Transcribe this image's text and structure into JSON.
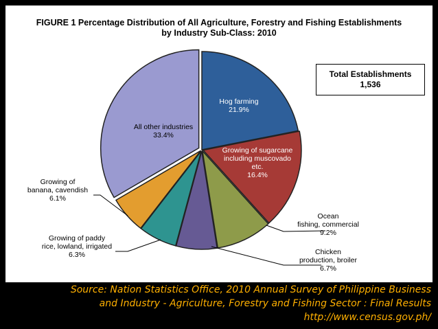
{
  "title": {
    "line1": "FIGURE 1  Percentage Distribution of All Agriculture, Forestry and Fishing Establishments",
    "line2": "by Industry Sub-Class: 2010"
  },
  "total_box": {
    "label": "Total Establishments",
    "value": "1,536"
  },
  "source": {
    "line1": "Source: Nation Statistics Office, 2010 Annual Survey of Philippine Business",
    "line2": "and Industry - Agriculture, Forestry and Fishing Sector : Final Results",
    "line3": "http://www.census.gov.ph/"
  },
  "chart_data": {
    "type": "pie",
    "title": "FIGURE 1  Percentage Distribution of All Agriculture, Forestry and Fishing Establishments by Industry Sub-Class: 2010",
    "slices": [
      {
        "label": [
          "Hog farming"
        ],
        "value": 21.9,
        "display": "21.9%",
        "color": "#2e5f9a"
      },
      {
        "label": [
          "Growing of sugarcane",
          "including muscovado",
          "etc."
        ],
        "value": 16.4,
        "display": "16.4%",
        "color": "#a63a36"
      },
      {
        "label": [
          "Ocean",
          "fishing, commercial"
        ],
        "value": 9.2,
        "display": "9.2%",
        "color": "#8e9b4a"
      },
      {
        "label": [
          "Chicken",
          "production, broiler"
        ],
        "value": 6.7,
        "display": "6.7%",
        "color": "#665a94"
      },
      {
        "label": [
          "Growing of paddy",
          "rice, lowland, irrigated"
        ],
        "value": 6.3,
        "display": "6.3%",
        "color": "#2e9490"
      },
      {
        "label": [
          "Growing of",
          "banana, cavendish"
        ],
        "value": 6.1,
        "display": "6.1%",
        "color": "#e39d2f"
      },
      {
        "label": [
          "All other industries"
        ],
        "value": 33.4,
        "display": "33.4%",
        "color": "#9a9ad0"
      }
    ],
    "legend": "none"
  }
}
